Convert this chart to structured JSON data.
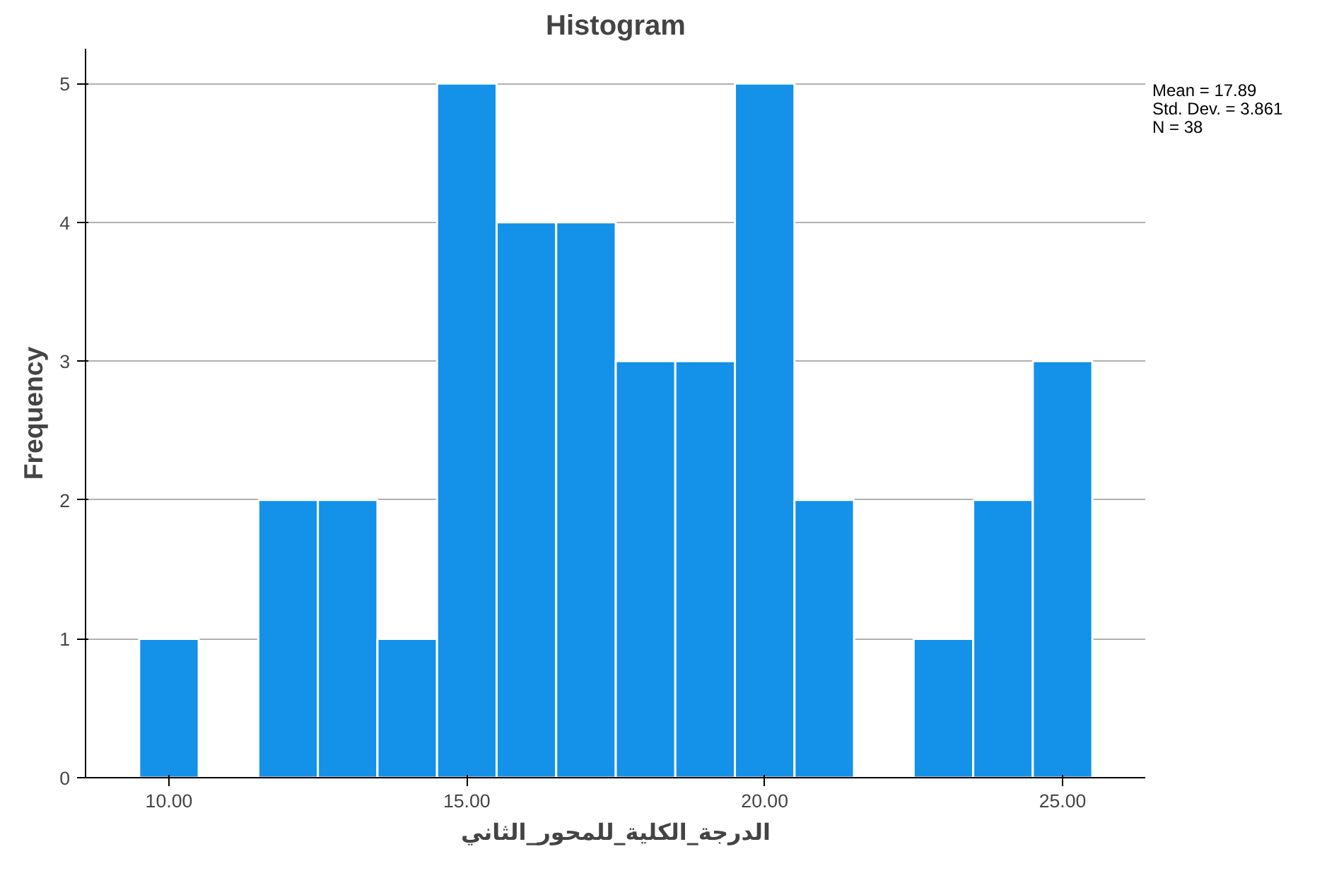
{
  "chart_data": {
    "type": "histogram",
    "title": "Histogram",
    "xlabel": "الدرجة_الكلية_للمحور_الثاني",
    "ylabel": "Frequency",
    "bins": [
      9.5,
      10.5,
      11.5,
      12.5,
      13.5,
      14.5,
      15.5,
      16.5,
      17.5,
      18.5,
      19.5,
      20.5,
      21.5,
      22.5,
      23.5,
      24.5,
      25.5
    ],
    "values": [
      1,
      0,
      2,
      2,
      1,
      5,
      4,
      4,
      3,
      3,
      5,
      2,
      0,
      1,
      2,
      3
    ],
    "color": "#1491e8",
    "xlim": [
      8.6,
      26.4
    ],
    "ylim": [
      0,
      5.25
    ],
    "xticks": [
      {
        "value": 10,
        "label": "10.00"
      },
      {
        "value": 15,
        "label": "15.00"
      },
      {
        "value": 20,
        "label": "20.00"
      },
      {
        "value": 25,
        "label": "25.00"
      }
    ],
    "yticks": [
      0,
      1,
      2,
      3,
      4,
      5
    ],
    "grid": "y",
    "annotations": [
      "Mean = 17.89",
      "Std. Dev. = 3.861",
      "N = 38"
    ]
  }
}
